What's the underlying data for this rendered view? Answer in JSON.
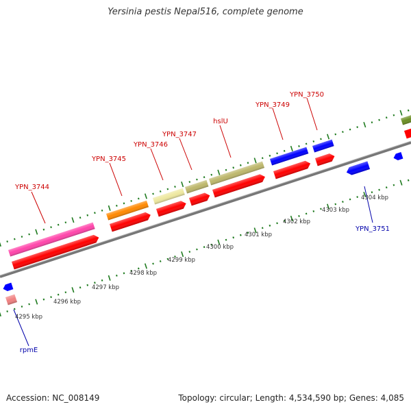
{
  "title": "Yersinia pestis Nepal516, complete genome",
  "footer": {
    "accession": "Accession: NC_008149",
    "topology": "Topology: circular; Length: 4,534,590 bp; Genes: 4,085"
  },
  "colors": {
    "label_forward": "#cc0000",
    "label_reverse": "#0000aa",
    "backbone": "#888888",
    "tick": "#1e7a1e",
    "cds": "#ff0000",
    "forward_genes": [
      "#ff44aa",
      "#ff8800",
      "#eee8a0",
      "#bdb76b",
      "#bdb76b",
      "#0000ff",
      "#0000ff",
      "#6b8e23"
    ],
    "reverse_genes": [
      "#0000ff",
      "#f08080",
      "#0000ff",
      "#0000ff"
    ]
  },
  "scale_labels": [
    "4295 kbp",
    "4296 kbp",
    "4297 kbp",
    "4298 kbp",
    "4299 kbp",
    "4300 kbp",
    "4301 kbp",
    "4302 kbp",
    "4303 kbp",
    "4304 kbp"
  ],
  "gene_labels_forward": [
    "YPN_3744",
    "YPN_3745",
    "YPN_3746",
    "YPN_3747",
    "hslU",
    "YPN_3749",
    "YPN_3750"
  ],
  "gene_labels_reverse": [
    "YPN_3751",
    "rpmE"
  ]
}
